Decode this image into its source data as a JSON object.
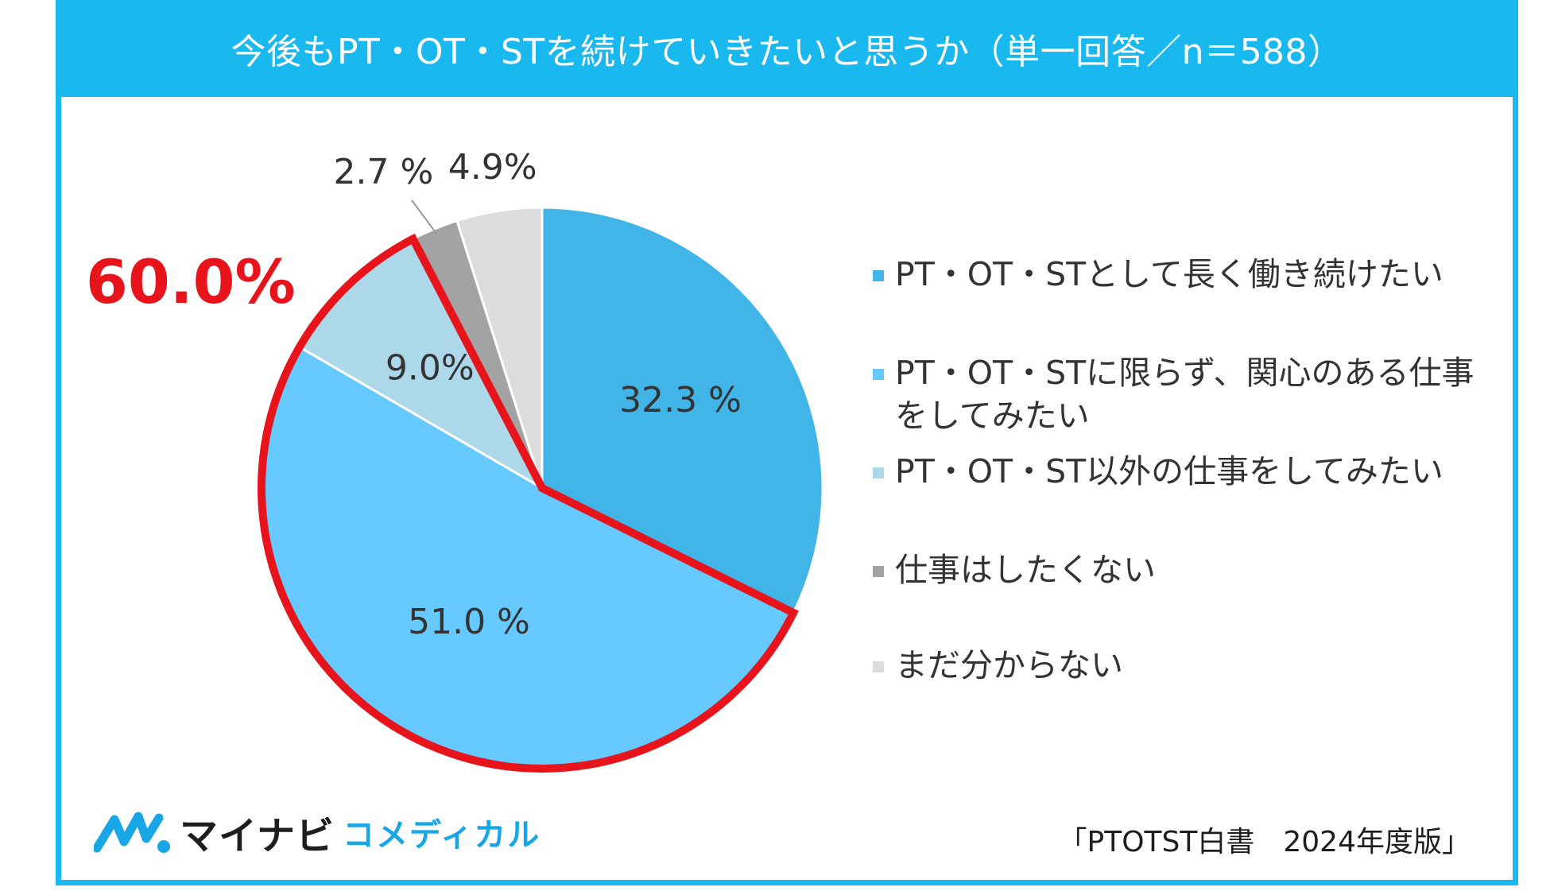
{
  "title": "今後もPT・OT・STを続けていきたいと思うか（単一回答／n＝588）",
  "highlight_total": "60.0%",
  "chart_data": {
    "type": "pie",
    "start": "12 o'clock",
    "direction": "clockwise",
    "highlighted_slices": [
      1,
      2
    ],
    "slices": [
      {
        "label": "PT・OT・STとして長く働き続けたい",
        "value": 32.3,
        "display": "32.3 %",
        "color": "#41b4e8"
      },
      {
        "label": "PT・OT・STに限らず、関心のある仕事をしてみたい",
        "value": 51.0,
        "display": "51.0 %",
        "color": "#66c9ff"
      },
      {
        "label": "PT・OT・ST以外の仕事をしてみたい",
        "value": 9.0,
        "display": "9.0%",
        "color": "#acd8ea"
      },
      {
        "label": "仕事はしたくない",
        "value": 2.7,
        "display": "2.7 %",
        "color": "#a3a3a3"
      },
      {
        "label": "まだ分からない",
        "value": 4.9,
        "display": "4.9%",
        "color": "#dcdcdc"
      }
    ],
    "legend_position": "right",
    "highlight_color": "#e8141b"
  },
  "legend": [
    {
      "line1": "PT・OT・STとして長く働き続けたい",
      "line2": ""
    },
    {
      "line1": "PT・OT・STに限らず、関心のある仕事",
      "line2": "をしてみたい"
    },
    {
      "line1": "PT・OT・ST以外の仕事をしてみたい",
      "line2": ""
    },
    {
      "line1": "仕事はしたくない",
      "line2": ""
    },
    {
      "line1": "まだ分からない",
      "line2": ""
    }
  ],
  "logo": {
    "main": "マイナビ",
    "sub": "コメディカル",
    "mark_icon": "mynavi-logo-mark-icon"
  },
  "source": "「PTOTST白書　2024年度版」"
}
